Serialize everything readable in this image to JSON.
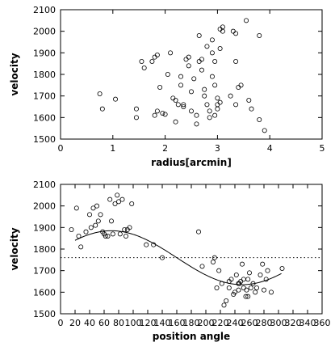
{
  "chart_data": [
    {
      "type": "scatter",
      "title": "",
      "xlabel": "radius[arcmin]",
      "ylabel": "velocity",
      "xlim": [
        0,
        5
      ],
      "ylim": [
        1500,
        2100
      ],
      "xticks": [
        "0",
        "1",
        "2",
        "3",
        "4",
        "5"
      ],
      "yticks": [
        "1500",
        "1600",
        "1700",
        "1800",
        "1900",
        "2000",
        "2100"
      ],
      "points": [
        [
          0.75,
          1710
        ],
        [
          0.8,
          1640
        ],
        [
          1.05,
          1685
        ],
        [
          1.45,
          1640
        ],
        [
          1.45,
          1600
        ],
        [
          1.55,
          1860
        ],
        [
          1.6,
          1830
        ],
        [
          1.75,
          1860
        ],
        [
          1.8,
          1880
        ],
        [
          1.85,
          1890
        ],
        [
          1.8,
          1610
        ],
        [
          1.85,
          1630
        ],
        [
          1.95,
          1620
        ],
        [
          2.0,
          1615
        ],
        [
          2.1,
          1900
        ],
        [
          2.15,
          1690
        ],
        [
          2.2,
          1680
        ],
        [
          2.2,
          1580
        ],
        [
          2.25,
          1660
        ],
        [
          2.3,
          1790
        ],
        [
          2.3,
          1750
        ],
        [
          2.35,
          1660
        ],
        [
          2.35,
          1650
        ],
        [
          2.4,
          1870
        ],
        [
          2.45,
          1880
        ],
        [
          2.45,
          1840
        ],
        [
          2.5,
          1630
        ],
        [
          2.5,
          1720
        ],
        [
          2.6,
          1610
        ],
        [
          2.6,
          1570
        ],
        [
          2.65,
          1980
        ],
        [
          2.65,
          1860
        ],
        [
          2.7,
          1870
        ],
        [
          2.7,
          1820
        ],
        [
          2.75,
          1730
        ],
        [
          2.75,
          1700
        ],
        [
          2.8,
          1660
        ],
        [
          2.8,
          1930
        ],
        [
          2.9,
          1960
        ],
        [
          2.9,
          1900
        ],
        [
          2.9,
          1790
        ],
        [
          2.95,
          1860
        ],
        [
          3.0,
          1690
        ],
        [
          3.0,
          1640
        ],
        [
          3.05,
          1670
        ],
        [
          3.05,
          1920
        ],
        [
          2.95,
          1610
        ],
        [
          2.85,
          1630
        ],
        [
          2.85,
          1600
        ],
        [
          3.0,
          1660
        ],
        [
          3.05,
          2010
        ],
        [
          3.1,
          2020
        ],
        [
          3.1,
          2000
        ],
        [
          3.3,
          2000
        ],
        [
          3.35,
          1990
        ],
        [
          3.35,
          1860
        ],
        [
          3.35,
          1660
        ],
        [
          3.4,
          1740
        ],
        [
          3.45,
          1750
        ],
        [
          3.55,
          2050
        ],
        [
          3.6,
          1680
        ],
        [
          3.65,
          1640
        ],
        [
          3.8,
          1590
        ],
        [
          3.8,
          1980
        ],
        [
          3.9,
          1540
        ],
        [
          2.05,
          1800
        ],
        [
          2.55,
          1780
        ],
        [
          2.95,
          1750
        ],
        [
          3.25,
          1700
        ],
        [
          1.9,
          1740
        ]
      ]
    },
    {
      "type": "scatter",
      "title": "",
      "xlabel": "position angle",
      "ylabel": "velocity",
      "xlim": [
        0,
        360
      ],
      "ylim": [
        1500,
        2100
      ],
      "xticks": [
        "0",
        "20",
        "40",
        "60",
        "80",
        "100",
        "120",
        "140",
        "160",
        "180",
        "200",
        "220",
        "240",
        "260",
        "280",
        "300",
        "320",
        "340",
        "360"
      ],
      "yticks": [
        "1500",
        "1600",
        "1700",
        "1800",
        "1900",
        "2000",
        "2100"
      ],
      "reference_line_y": 1760,
      "fit_curve": {
        "x_start": 20,
        "x_end": 305,
        "mean": 1760,
        "amplitude": 125,
        "peak_angle": 70
      },
      "points": [
        [
          15,
          1890
        ],
        [
          22,
          1990
        ],
        [
          25,
          1860
        ],
        [
          28,
          1810
        ],
        [
          35,
          1880
        ],
        [
          40,
          1960
        ],
        [
          42,
          1900
        ],
        [
          45,
          1990
        ],
        [
          48,
          1910
        ],
        [
          50,
          2000
        ],
        [
          52,
          1930
        ],
        [
          55,
          1960
        ],
        [
          58,
          1880
        ],
        [
          60,
          1870
        ],
        [
          62,
          1860
        ],
        [
          65,
          1860
        ],
        [
          68,
          2030
        ],
        [
          70,
          1930
        ],
        [
          72,
          1870
        ],
        [
          75,
          2010
        ],
        [
          78,
          2050
        ],
        [
          80,
          2020
        ],
        [
          82,
          1870
        ],
        [
          85,
          2030
        ],
        [
          88,
          1890
        ],
        [
          90,
          1860
        ],
        [
          92,
          1890
        ],
        [
          95,
          1900
        ],
        [
          98,
          2010
        ],
        [
          118,
          1820
        ],
        [
          128,
          1820
        ],
        [
          140,
          1760
        ],
        [
          190,
          1880
        ],
        [
          195,
          1720
        ],
        [
          210,
          1740
        ],
        [
          212,
          1760
        ],
        [
          215,
          1620
        ],
        [
          218,
          1700
        ],
        [
          222,
          1640
        ],
        [
          225,
          1540
        ],
        [
          228,
          1560
        ],
        [
          232,
          1650
        ],
        [
          235,
          1660
        ],
        [
          238,
          1590
        ],
        [
          240,
          1600
        ],
        [
          242,
          1680
        ],
        [
          245,
          1640
        ],
        [
          246,
          1640
        ],
        [
          248,
          1650
        ],
        [
          250,
          1730
        ],
        [
          252,
          1620
        ],
        [
          255,
          1580
        ],
        [
          256,
          1610
        ],
        [
          258,
          1580
        ],
        [
          260,
          1690
        ],
        [
          262,
          1620
        ],
        [
          265,
          1640
        ],
        [
          268,
          1600
        ],
        [
          270,
          1620
        ],
        [
          275,
          1680
        ],
        [
          278,
          1730
        ],
        [
          280,
          1610
        ],
        [
          283,
          1660
        ],
        [
          285,
          1700
        ],
        [
          290,
          1600
        ],
        [
          305,
          1710
        ],
        [
          245,
          1610
        ],
        [
          252,
          1660
        ],
        [
          232,
          1620
        ],
        [
          258,
          1660
        ]
      ]
    }
  ]
}
